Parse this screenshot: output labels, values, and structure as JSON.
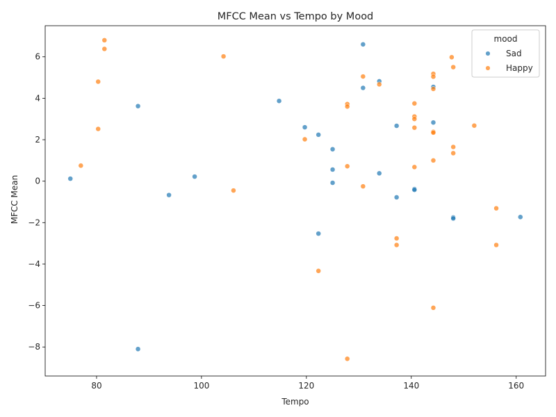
{
  "chart_data": {
    "type": "scatter",
    "title": "MFCC Mean vs Tempo by Mood",
    "xlabel": "Tempo",
    "ylabel": "MFCC Mean",
    "xlim": [
      70.2,
      165.6
    ],
    "ylim": [
      -9.4,
      7.5
    ],
    "xticks": [
      80,
      100,
      120,
      140,
      160
    ],
    "yticks": [
      -8,
      -6,
      -4,
      -2,
      0,
      2,
      4,
      6
    ],
    "grid": false,
    "legend": {
      "title": "mood",
      "placement": "top-right"
    },
    "series": [
      {
        "name": "Sad",
        "color": "#1f77b4",
        "points": [
          [
            75.0,
            0.12
          ],
          [
            87.9,
            3.62
          ],
          [
            87.9,
            -8.1
          ],
          [
            93.8,
            -0.67
          ],
          [
            98.7,
            0.22
          ],
          [
            114.8,
            3.87
          ],
          [
            119.7,
            2.6
          ],
          [
            122.3,
            2.24
          ],
          [
            122.3,
            -2.53
          ],
          [
            125.0,
            1.54
          ],
          [
            125.0,
            0.56
          ],
          [
            125.0,
            -0.08
          ],
          [
            130.8,
            6.6
          ],
          [
            130.8,
            4.5
          ],
          [
            133.9,
            4.82
          ],
          [
            133.9,
            0.38
          ],
          [
            137.2,
            2.67
          ],
          [
            137.2,
            -0.78
          ],
          [
            140.6,
            -0.38
          ],
          [
            140.6,
            -0.42
          ],
          [
            144.2,
            4.55
          ],
          [
            144.2,
            2.83
          ],
          [
            148.0,
            -1.75
          ],
          [
            148.0,
            -1.8
          ],
          [
            160.8,
            -1.73
          ]
        ]
      },
      {
        "name": "Happy",
        "color": "#ff7f0e",
        "points": [
          [
            77.0,
            0.75
          ],
          [
            80.3,
            4.8
          ],
          [
            80.3,
            2.52
          ],
          [
            81.5,
            6.8
          ],
          [
            81.5,
            6.38
          ],
          [
            104.2,
            6.02
          ],
          [
            106.1,
            -0.45
          ],
          [
            119.7,
            2.02
          ],
          [
            122.3,
            -4.33
          ],
          [
            127.8,
            3.72
          ],
          [
            127.8,
            3.6
          ],
          [
            127.8,
            0.72
          ],
          [
            127.8,
            -8.57
          ],
          [
            130.8,
            5.05
          ],
          [
            130.8,
            -0.25
          ],
          [
            133.9,
            4.67
          ],
          [
            137.2,
            -2.76
          ],
          [
            137.2,
            -3.08
          ],
          [
            140.6,
            3.75
          ],
          [
            140.6,
            3.12
          ],
          [
            140.6,
            3.0
          ],
          [
            140.6,
            2.58
          ],
          [
            140.6,
            0.68
          ],
          [
            144.2,
            5.18
          ],
          [
            144.2,
            5.04
          ],
          [
            144.2,
            4.45
          ],
          [
            144.2,
            2.38
          ],
          [
            144.2,
            2.34
          ],
          [
            144.2,
            1.0
          ],
          [
            144.2,
            -6.11
          ],
          [
            147.7,
            5.98
          ],
          [
            148.0,
            5.5
          ],
          [
            148.0,
            1.65
          ],
          [
            148.0,
            1.35
          ],
          [
            152.0,
            2.68
          ],
          [
            156.2,
            -1.31
          ],
          [
            156.2,
            -3.08
          ]
        ]
      }
    ]
  }
}
